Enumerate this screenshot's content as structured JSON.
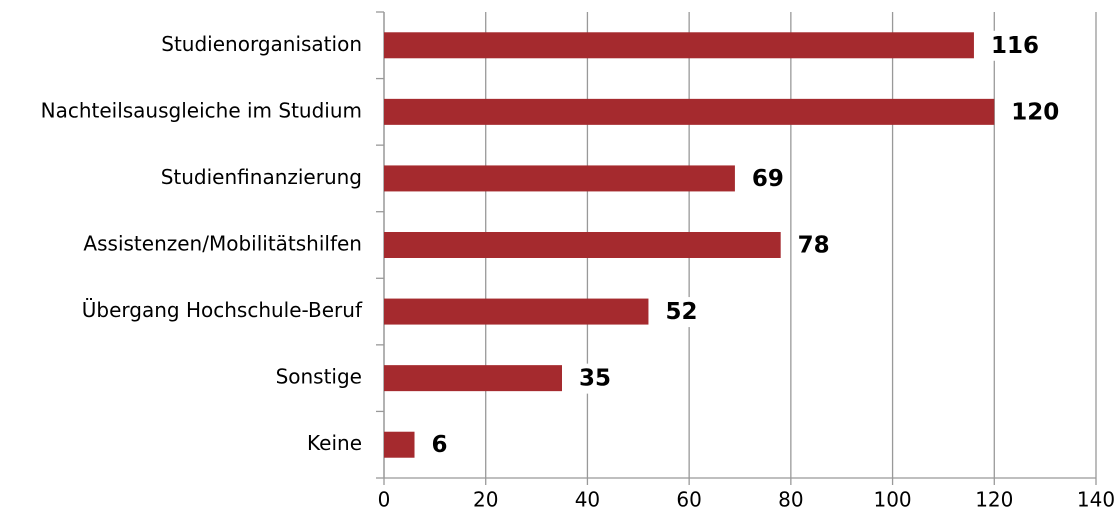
{
  "chart_data": {
    "type": "bar",
    "orientation": "horizontal",
    "categories": [
      "Studienorganisation",
      "Nachteilsausgleiche im Studium",
      "Studienfinanzierung",
      "Assistenzen/Mobilitätshilfen",
      "Übergang Hochschule-Beruf",
      "Sonstige",
      "Keine"
    ],
    "values": [
      116,
      120,
      69,
      78,
      52,
      35,
      6
    ],
    "color": "#a52a2e",
    "xlim": [
      0,
      140
    ],
    "xticks": [
      0,
      20,
      40,
      60,
      80,
      100,
      120,
      140
    ],
    "grid": true
  }
}
